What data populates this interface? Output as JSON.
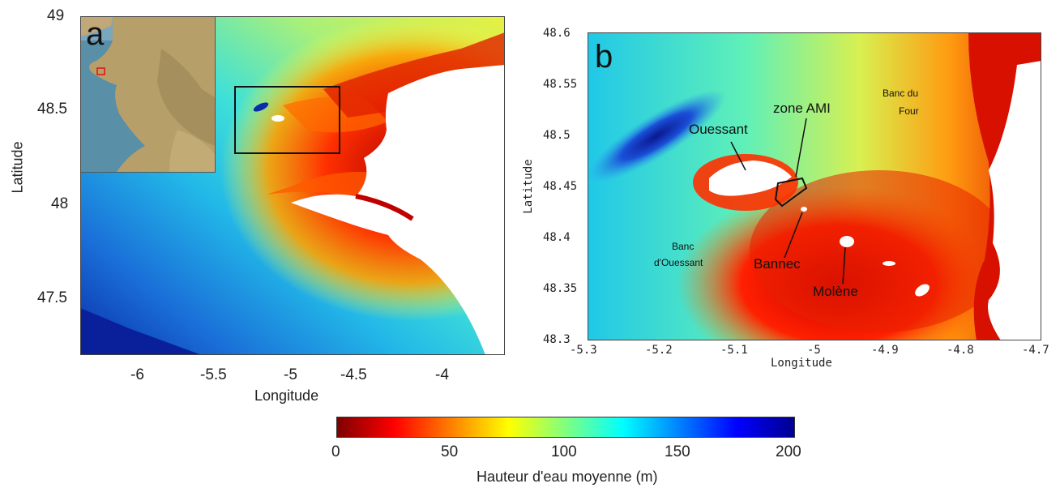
{
  "panel_a": {
    "letter": "a",
    "y_ticks": [
      "49",
      "48.5",
      "48",
      "47.5"
    ],
    "x_ticks": [
      "-6",
      "-5.5",
      "-5",
      "-4.5",
      "-4"
    ],
    "xlabel": "Longitude",
    "ylabel": "Latitude"
  },
  "panel_b": {
    "letter": "b",
    "y_ticks": [
      "48.6",
      "48.55",
      "48.5",
      "48.45",
      "48.4",
      "48.35",
      "48.3"
    ],
    "x_ticks": [
      "-5.3",
      "-5.2",
      "-5.1",
      "-5",
      "-4.9",
      "-4.8",
      "-4.7"
    ],
    "xlabel": "Longitude",
    "ylabel": "Latitude",
    "labels": {
      "ouessant": "Ouessant",
      "zone_ami": "zone AMI",
      "banc_du_four_1": "Banc du",
      "banc_du_four_2": "Four",
      "banc_ouessant_1": "Banc",
      "banc_ouessant_2": "d'Ouessant",
      "bannec": "Bannec",
      "molene": "Molène"
    }
  },
  "colorbar": {
    "ticks": [
      "0",
      "50",
      "100",
      "150",
      "200"
    ],
    "label": "Hauteur d'eau moyenne (m)",
    "range": [
      0,
      200
    ],
    "stops": [
      "#7f0000",
      "#ff0000",
      "#ff8000",
      "#ffff00",
      "#80ff80",
      "#00ffff",
      "#0080ff",
      "#0000ff",
      "#00008f"
    ]
  }
}
